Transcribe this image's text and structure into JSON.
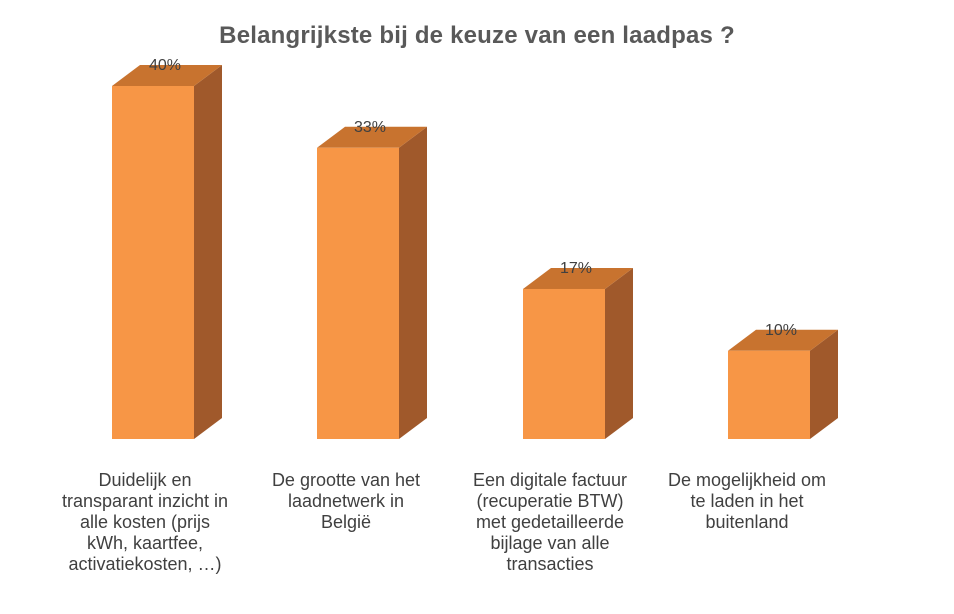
{
  "chart_data": {
    "type": "bar",
    "title": "Belangrijkste bij de keuze van een laadpas ?",
    "categories": [
      "Duidelijk en transparant inzicht in alle kosten (prijs kWh, kaartfee, activatiekosten, …)",
      "De grootte van het laadnetwerk in België",
      "Een digitale factuur (recuperatie BTW) met gedetailleerde bijlage van alle transacties",
      "De mogelijkheid om te laden in het buitenland"
    ],
    "values": [
      40,
      33,
      17,
      10
    ],
    "data_labels": [
      "40%",
      "33%",
      "17%",
      "10%"
    ],
    "unit": "%",
    "ylim": [
      0,
      40
    ],
    "grid": false,
    "legend": "none",
    "style": "3d-column",
    "colors": {
      "front": "#F79646",
      "side": "#A0592B",
      "top": "#C8732F"
    }
  }
}
